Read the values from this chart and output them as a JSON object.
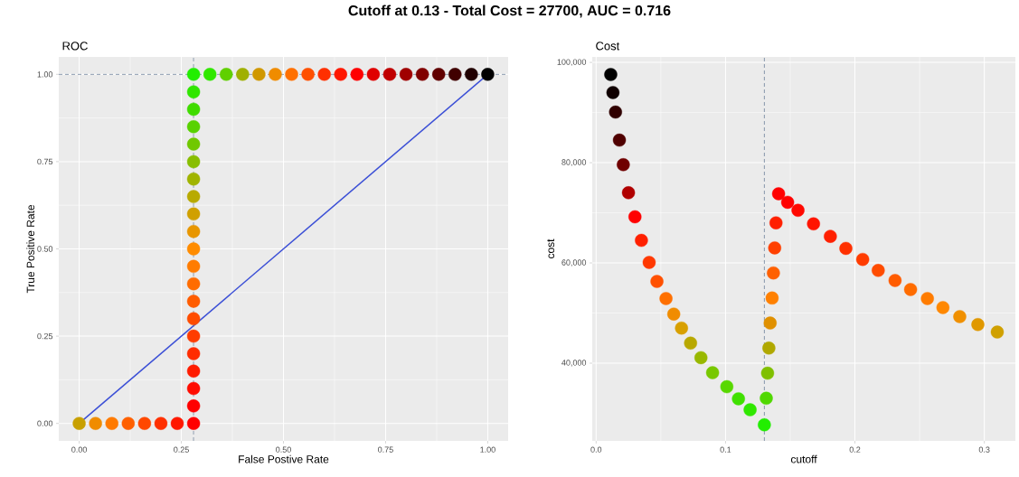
{
  "chart_data": [
    {
      "type": "scatter",
      "title": "ROC",
      "annotations": [
        "Cutoff at 0.13 - Total Cost = 27700, AUC = 0.716"
      ],
      "xlabel": "False Postive Rate",
      "ylabel": "True Positive Rate",
      "xlim": [
        -0.05,
        1.05
      ],
      "ylim": [
        -0.05,
        1.05
      ],
      "xticks": [
        {
          "value": 0,
          "label": "0.00"
        },
        {
          "value": 0.25,
          "label": "0.25"
        },
        {
          "value": 0.5,
          "label": "0.50"
        },
        {
          "value": 0.75,
          "label": "0.75"
        },
        {
          "value": 1,
          "label": "1.00"
        }
      ],
      "yticks": [
        {
          "value": 0,
          "label": "0.00"
        },
        {
          "value": 0.25,
          "label": "0.25"
        },
        {
          "value": 0.5,
          "label": "0.50"
        },
        {
          "value": 0.75,
          "label": "0.75"
        },
        {
          "value": 1,
          "label": "1.00"
        }
      ],
      "grid": true,
      "ref_lines": [
        {
          "axis": "x",
          "value": 0.28,
          "color": "#6b7f99",
          "line_style": "dashed"
        },
        {
          "axis": "y",
          "value": 1,
          "color": "#6b7f99",
          "line_style": "dashed"
        }
      ],
      "series": [
        {
          "marker": "circle",
          "x": [
            0,
            0.04,
            0.08,
            0.12,
            0.16,
            0.2,
            0.24,
            0.28,
            0.28,
            0.28,
            0.28,
            0.28,
            0.28,
            0.28,
            0.28,
            0.28,
            0.28,
            0.28,
            0.28,
            0.28,
            0.28,
            0.28,
            0.28,
            0.28,
            0.28,
            0.28,
            0.28,
            0.28,
            0.32,
            0.36,
            0.4,
            0.44,
            0.48,
            0.52,
            0.56,
            0.6,
            0.64,
            0.68,
            0.72,
            0.76,
            0.8,
            0.84,
            0.88,
            0.92,
            0.96,
            1.0
          ],
          "values": [
            0,
            0,
            0,
            0,
            0,
            0,
            0,
            0,
            0.05,
            0.1,
            0.15,
            0.2,
            0.25,
            0.3,
            0.35,
            0.4,
            0.45,
            0.5,
            0.55,
            0.6,
            0.65,
            0.7,
            0.75,
            0.8,
            0.85,
            0.9,
            0.95,
            1,
            1,
            1,
            1,
            1,
            1,
            1,
            1,
            1,
            1,
            1,
            1,
            1,
            1,
            1,
            1,
            1,
            1,
            1
          ],
          "colors": [
            "#c8a000",
            "#f08c00",
            "#ff7a00",
            "#ff6000",
            "#ff4800",
            "#ff3000",
            "#ff1800",
            "#ff0000",
            "#ff0000",
            "#ff0c00",
            "#ff1c00",
            "#ff2c00",
            "#ff3c00",
            "#ff4c00",
            "#ff5c00",
            "#ff6c00",
            "#ff7c00",
            "#ff8c00",
            "#e89600",
            "#d0a000",
            "#b8aa00",
            "#a0b400",
            "#88be00",
            "#70c800",
            "#58d200",
            "#40dc00",
            "#30e600",
            "#22ee00",
            "#30e800",
            "#60d000",
            "#a0b000",
            "#d09800",
            "#f08c00",
            "#ff7000",
            "#ff5000",
            "#ff3000",
            "#ff1800",
            "#ff0000",
            "#e00000",
            "#c00000",
            "#a00000",
            "#800000",
            "#600000",
            "#400000",
            "#200000",
            "#000000"
          ]
        },
        {
          "type": "line",
          "x": [
            0,
            1
          ],
          "values": [
            0,
            1
          ],
          "color": "#3b4fd6",
          "line_style": "solid"
        }
      ]
    },
    {
      "type": "scatter",
      "title": "Cost",
      "xlabel": "cutoff",
      "ylabel": "cost",
      "xlim": [
        -0.003,
        0.324
      ],
      "ylim": [
        24500,
        101100
      ],
      "xticks": [
        {
          "value": 0,
          "label": "0.0"
        },
        0.1,
        0.2,
        0.3
      ],
      "yticks": [
        {
          "value": 40000,
          "label": "40,000"
        },
        {
          "value": 60000,
          "label": "60,000"
        },
        {
          "value": 80000,
          "label": "80,000"
        },
        {
          "value": 100000,
          "label": "100,000"
        }
      ],
      "grid": true,
      "ref_lines": [
        {
          "axis": "x",
          "value": 0.13,
          "color": "#6b7f99",
          "line_style": "dashed"
        }
      ],
      "series": [
        {
          "marker": "circle",
          "x": [
            0.0113,
            0.013,
            0.015,
            0.018,
            0.021,
            0.025,
            0.03,
            0.035,
            0.041,
            0.047,
            0.054,
            0.06,
            0.066,
            0.073,
            0.081,
            0.09,
            0.101,
            0.11,
            0.119,
            0.13,
            0.1315,
            0.1325,
            0.1335,
            0.1345,
            0.136,
            0.137,
            0.138,
            0.139,
            0.141,
            0.148,
            0.156,
            0.168,
            0.181,
            0.193,
            0.206,
            0.218,
            0.231,
            0.243,
            0.256,
            0.268,
            0.281,
            0.295,
            0.31
          ],
          "values": [
            97600,
            94000,
            90100,
            84500,
            79600,
            74000,
            69200,
            64500,
            60100,
            56300,
            52900,
            49800,
            47000,
            44000,
            41100,
            38100,
            35300,
            32900,
            30700,
            27700,
            33000,
            38000,
            43000,
            48000,
            53000,
            58000,
            63000,
            68000,
            73800,
            72100,
            70500,
            67800,
            65300,
            62900,
            60700,
            58500,
            56500,
            54700,
            52900,
            51100,
            49300,
            47700,
            46200
          ],
          "colors": [
            "#000000",
            "#100000",
            "#300000",
            "#500000",
            "#700000",
            "#b00000",
            "#ff0000",
            "#ff2000",
            "#ff3800",
            "#ff5000",
            "#ff7000",
            "#f08c00",
            "#d8a000",
            "#b8a800",
            "#98b800",
            "#78c800",
            "#58d800",
            "#40e000",
            "#30e800",
            "#22ee00",
            "#50d800",
            "#80c000",
            "#b0a800",
            "#e09000",
            "#ff8000",
            "#ff6000",
            "#ff4000",
            "#ff2000",
            "#ff0000",
            "#ff0000",
            "#ff0800",
            "#ff1400",
            "#ff2000",
            "#ff3000",
            "#ff3c00",
            "#ff4c00",
            "#ff5c00",
            "#ff6c00",
            "#ff7c00",
            "#ff8800",
            "#f09000",
            "#e09800",
            "#d0a000"
          ]
        }
      ]
    }
  ]
}
